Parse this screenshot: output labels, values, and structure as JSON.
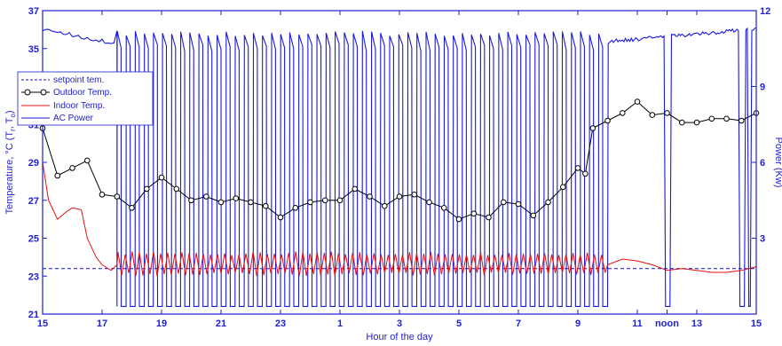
{
  "chart_data": {
    "type": "line",
    "title": "",
    "xlabel": "Hour of the day",
    "ylabel_left": "Temperature, °C (T",
    "ylabel_left_sub1": "r",
    "ylabel_left_sep": ", T",
    "ylabel_left_sub2": "o",
    "ylabel_left_end": ")",
    "ylabel_right": "Power  (Kw)",
    "x_range": [
      15,
      39
    ],
    "x_ticks": [
      {
        "x": 15,
        "label": "15"
      },
      {
        "x": 17,
        "label": "17"
      },
      {
        "x": 19,
        "label": "19"
      },
      {
        "x": 21,
        "label": "21"
      },
      {
        "x": 23,
        "label": "23"
      },
      {
        "x": 25,
        "label": "1"
      },
      {
        "x": 27,
        "label": "3"
      },
      {
        "x": 29,
        "label": "5"
      },
      {
        "x": 31,
        "label": "7"
      },
      {
        "x": 33,
        "label": "9"
      },
      {
        "x": 35,
        "label": "11"
      },
      {
        "x": 36,
        "label": "noon"
      },
      {
        "x": 37,
        "label": "13"
      },
      {
        "x": 39,
        "label": "15"
      }
    ],
    "y_left_range": [
      21,
      37
    ],
    "y_left_ticks": [
      21,
      23,
      25,
      27,
      29,
      31,
      33,
      35,
      37
    ],
    "y_right_range": [
      0,
      12
    ],
    "y_right_ticks": [
      3,
      6,
      9,
      12
    ],
    "legend": {
      "position": "left",
      "entries": [
        {
          "key": "setpoint",
          "label": "setpoint tem."
        },
        {
          "key": "outdoor",
          "label": "Outdoor Temp."
        },
        {
          "key": "indoor",
          "label": "Indoor Temp."
        },
        {
          "key": "power",
          "label": "AC Power"
        }
      ]
    },
    "colors": {
      "setpoint": "#1010c8",
      "outdoor": "#000000",
      "indoor": "#e41010",
      "power": "#1a1ad8",
      "axis": "#1f1fd0"
    },
    "series": {
      "setpoint": {
        "value": 23.4
      },
      "outdoor": {
        "x": [
          15,
          15.5,
          16,
          16.5,
          17,
          17.5,
          18,
          18.5,
          19,
          19.5,
          20,
          20.5,
          21,
          21.5,
          22,
          22.5,
          23,
          23.5,
          24,
          24.5,
          25,
          25.5,
          26,
          26.5,
          27,
          27.5,
          28,
          28.5,
          29,
          29.5,
          30,
          30.5,
          31,
          31.5,
          32,
          32.5,
          33,
          33.25,
          33.5,
          34,
          34.5,
          35,
          35.5,
          36,
          36.5,
          37,
          37.5,
          38,
          38.5,
          39
        ],
        "y": [
          30.8,
          28.3,
          28.7,
          29.1,
          27.3,
          27.2,
          26.6,
          27.6,
          28.2,
          27.6,
          27.0,
          27.2,
          26.9,
          27.1,
          26.9,
          26.7,
          26.1,
          26.6,
          26.9,
          27.0,
          27.0,
          27.6,
          27.2,
          26.7,
          27.2,
          27.3,
          26.9,
          26.6,
          26.0,
          26.3,
          26.1,
          26.9,
          26.8,
          26.2,
          26.9,
          27.7,
          28.7,
          28.4,
          30.8,
          31.2,
          31.6,
          32.2,
          31.5,
          31.6,
          31.1,
          31.1,
          31.3,
          31.3,
          31.2,
          31.6
        ]
      },
      "indoor": {
        "x": [
          15,
          15.2,
          15.5,
          15.8,
          16,
          16.3,
          16.5,
          16.8,
          17,
          17.3,
          17.5,
          34,
          34.5,
          35,
          35.5,
          36,
          36.5,
          37,
          37.5,
          38,
          38.5,
          39
        ],
        "y": [
          29.0,
          27.0,
          26.0,
          26.4,
          26.6,
          26.5,
          25.0,
          24.0,
          23.6,
          23.3,
          23.6,
          23.6,
          23.9,
          23.8,
          23.6,
          23.3,
          23.4,
          23.3,
          23.2,
          23.2,
          23.3,
          23.5
        ],
        "oscillation": {
          "x_start": 17.5,
          "x_end": 34,
          "cycles": 69,
          "low": 23.0,
          "high": 24.3
        }
      },
      "power": {
        "on_level_kw": 11.2,
        "off_level_kw": 0.3,
        "cycling": {
          "x_start": 17.5,
          "x_end": 34,
          "cycles": 54
        },
        "extra_off_dips": [
          {
            "x_start": 35.9,
            "x_end": 36.1
          },
          {
            "x_start": 38.4,
            "x_end": 38.6
          },
          {
            "x_start": 38.7,
            "x_end": 38.8
          }
        ]
      }
    }
  }
}
